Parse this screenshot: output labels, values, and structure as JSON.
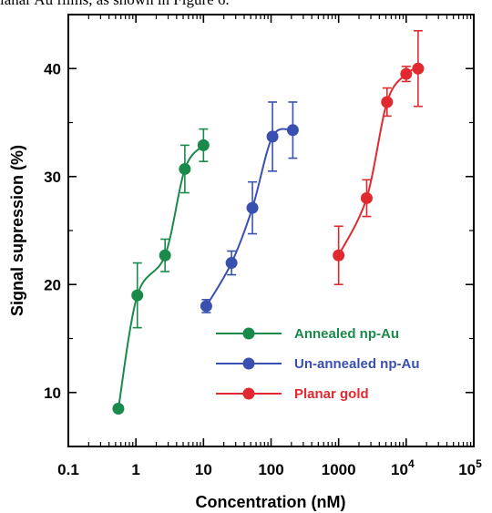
{
  "caption": "lanar Au films, as shown in Figure 6.",
  "chart_data": {
    "type": "line",
    "xlabel": "Concentration (nM)",
    "ylabel": "Signal supression (%)",
    "xscale": "log",
    "xlim": [
      0.1,
      100000
    ],
    "ylim": [
      5,
      45
    ],
    "x_ticks": [
      {
        "value": 0.1,
        "label": "0.1",
        "sup": ""
      },
      {
        "value": 1,
        "label": "1",
        "sup": ""
      },
      {
        "value": 10,
        "label": "10",
        "sup": ""
      },
      {
        "value": 100,
        "label": "100",
        "sup": ""
      },
      {
        "value": 1000,
        "label": "1000",
        "sup": ""
      },
      {
        "value": 10000,
        "label": "10",
        "sup": "4"
      },
      {
        "value": 100000,
        "label": "10",
        "sup": "5"
      }
    ],
    "y_ticks": [
      10,
      20,
      30,
      40
    ],
    "legend_position": "bottom-right",
    "series": [
      {
        "name": "Annealed np-Au",
        "color": "#1a8a4a",
        "x": [
          0.55,
          1.05,
          2.7,
          5.3,
          10
        ],
        "y": [
          8.5,
          19.0,
          22.7,
          30.7,
          32.9
        ],
        "err": [
          0,
          3.0,
          1.5,
          2.2,
          1.5
        ]
      },
      {
        "name": "Un-annealed np-Au",
        "color": "#3a50b0",
        "x": [
          11,
          26,
          53,
          105,
          210
        ],
        "y": [
          18.0,
          22.0,
          27.1,
          33.7,
          34.3
        ],
        "err": [
          0.6,
          1.1,
          2.4,
          3.2,
          2.6
        ]
      },
      {
        "name": "Planar gold",
        "color": "#e02a30",
        "x": [
          1000,
          2600,
          5200,
          10000,
          15000
        ],
        "y": [
          22.7,
          28.0,
          36.9,
          39.5,
          40.0
        ],
        "err": [
          2.7,
          1.7,
          1.3,
          0.7,
          3.5
        ]
      }
    ]
  }
}
